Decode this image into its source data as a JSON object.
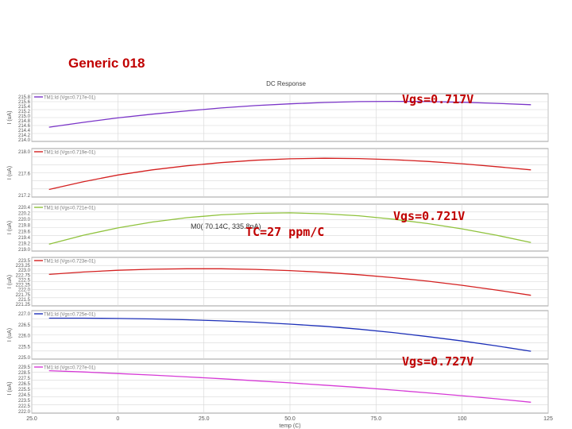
{
  "slide": {
    "title": "Generic 018"
  },
  "annotations": {
    "top": "Vgs=0.717V",
    "mid": "Vgs=0.721V",
    "tc": "TC=27 ppm/C",
    "bottom": "Vgs=0.727V"
  },
  "cursor_label": "M0( 70.14C, 335.8nA)",
  "chart_data": {
    "type": "line",
    "title": "DC Response",
    "xlabel": "temp (C)",
    "x_ticks": [
      "25.0",
      "0",
      "25.0",
      "50.0",
      "75.0",
      "100",
      "125"
    ],
    "x_tick_values": [
      -25,
      0,
      25,
      50,
      75,
      100,
      125
    ],
    "xlim": [
      -25,
      125
    ],
    "grid": true,
    "panels": [
      {
        "ylabel": "I (uA)",
        "legend": "TM1:Id (Vgs=0.717e-01)",
        "color": "#7a34c8",
        "y_ticks": [
          "215.8",
          "215.6",
          "215.4",
          "215.2",
          "215.0",
          "214.8",
          "214.6",
          "214.4",
          "214.2",
          "214.0"
        ],
        "ylim": [
          214.0,
          215.8
        ],
        "x": [
          -20,
          -10,
          0,
          10,
          20,
          30,
          40,
          50,
          60,
          70,
          80,
          90,
          100,
          110,
          120
        ],
        "y": [
          214.5,
          214.72,
          214.92,
          215.09,
          215.24,
          215.37,
          215.48,
          215.56,
          215.62,
          215.66,
          215.67,
          215.66,
          215.63,
          215.58,
          215.52
        ]
      },
      {
        "ylabel": "I (uA)",
        "legend": "TM1:Id (Vgs=0.719e-01)",
        "color": "#d42020",
        "y_ticks": [
          "218.0",
          "217.6",
          "217.2"
        ],
        "ylim": [
          216.8,
          218.2
        ],
        "x": [
          -20,
          -10,
          0,
          10,
          20,
          30,
          40,
          50,
          60,
          70,
          80,
          90,
          100,
          110,
          120
        ],
        "y": [
          216.95,
          217.22,
          217.45,
          217.63,
          217.77,
          217.88,
          217.96,
          218.01,
          218.03,
          218.02,
          217.98,
          217.92,
          217.84,
          217.74,
          217.63
        ]
      },
      {
        "ylabel": "I (uA)",
        "legend": "TM1:Id (Vgs=0.721e-01)",
        "color": "#8fc23c",
        "y_ticks": [
          "220.4",
          "220.2",
          "220.0",
          "219.8",
          "219.6",
          "219.4",
          "219.2",
          "219.0"
        ],
        "ylim": [
          218.8,
          220.4
        ],
        "x": [
          -20,
          -10,
          0,
          10,
          20,
          30,
          40,
          50,
          60,
          70,
          80,
          90,
          100,
          110,
          120
        ],
        "y": [
          218.95,
          219.32,
          219.62,
          219.86,
          220.04,
          220.16,
          220.22,
          220.24,
          220.2,
          220.12,
          219.98,
          219.8,
          219.58,
          219.32,
          219.02
        ]
      },
      {
        "ylabel": "I (uA)",
        "legend": "TM1:Id (Vgs=0.723e-01)",
        "color": "#d42020",
        "y_ticks": [
          "223.5",
          "223.25",
          "223.0",
          "222.75",
          "222.5",
          "222.25",
          "222.0",
          "221.75",
          "221.5",
          "221.25"
        ],
        "ylim": [
          221.0,
          223.75
        ],
        "x": [
          -20,
          -10,
          0,
          10,
          20,
          30,
          40,
          50,
          60,
          70,
          80,
          90,
          100,
          110,
          120
        ],
        "y": [
          222.92,
          223.08,
          223.2,
          223.27,
          223.3,
          223.3,
          223.26,
          223.18,
          223.06,
          222.9,
          222.7,
          222.46,
          222.18,
          221.86,
          221.5
        ]
      },
      {
        "ylabel": "I (uA)",
        "legend": "TM1:Id (Vgs=0.725e-01)",
        "color": "#1c2fb8",
        "y_ticks": [
          "227.0",
          "226.5",
          "226.0",
          "225.5",
          "225.0"
        ],
        "ylim": [
          224.6,
          227.2
        ],
        "x": [
          -20,
          -10,
          0,
          10,
          20,
          30,
          40,
          50,
          60,
          70,
          80,
          90,
          100,
          110,
          120
        ],
        "y": [
          227.02,
          227.02,
          227.0,
          226.97,
          226.92,
          226.85,
          226.76,
          226.64,
          226.5,
          226.32,
          226.1,
          225.84,
          225.56,
          225.24,
          224.9
        ]
      },
      {
        "ylabel": "I (uA)",
        "legend": "TM1:Id (Vgs=0.727e-01)",
        "color": "#d63ad6",
        "y_ticks": [
          "229.5",
          "228.5",
          "227.5",
          "226.5",
          "225.5",
          "224.5",
          "223.5",
          "222.5",
          "222.0"
        ],
        "ylim": [
          222.0,
          230.0
        ],
        "x": [
          -20,
          -10,
          0,
          10,
          20,
          30,
          40,
          50,
          60,
          70,
          80,
          90,
          100,
          110,
          120
        ],
        "y": [
          229.6,
          229.35,
          229.05,
          228.75,
          228.4,
          228.05,
          227.65,
          227.25,
          226.8,
          226.35,
          225.85,
          225.3,
          224.75,
          224.15,
          223.5
        ]
      }
    ]
  }
}
